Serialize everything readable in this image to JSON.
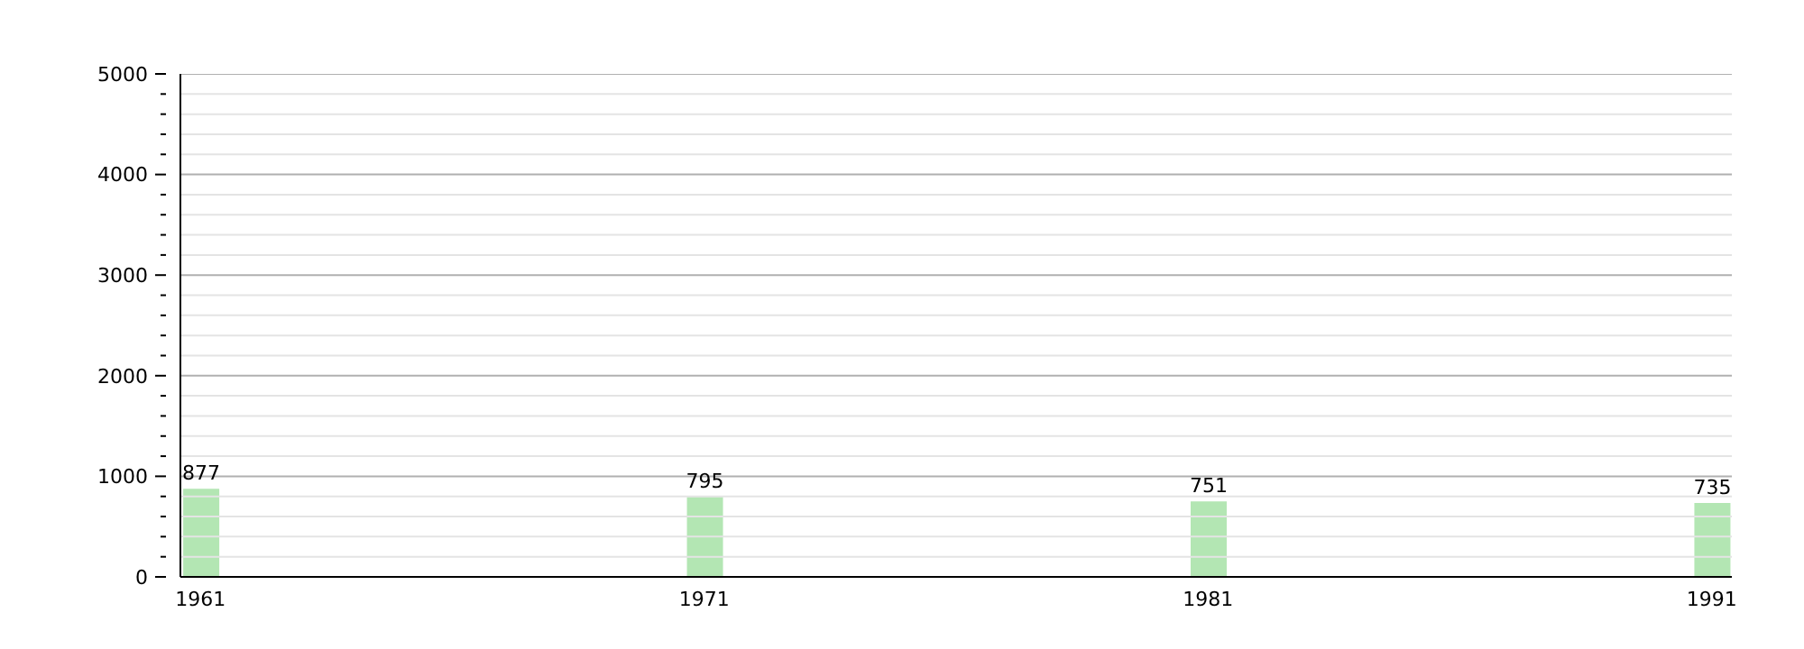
{
  "chart_data": {
    "type": "bar",
    "x": [
      1961,
      1971,
      1981,
      1991
    ],
    "values": [
      877,
      795,
      751,
      735
    ],
    "color": "#b3e6b3",
    "xlim": [
      1960.6,
      1991.4
    ],
    "xticks": [
      1961,
      1971,
      1981,
      1991
    ],
    "ylim": [
      0,
      5000
    ],
    "yticks": [
      0,
      {
        "value": 200,
        "label": null
      },
      {
        "value": 400,
        "label": null
      },
      {
        "value": 600,
        "label": null
      },
      {
        "value": 800,
        "label": null
      },
      1000,
      {
        "value": 1200,
        "label": null
      },
      {
        "value": 1400,
        "label": null
      },
      {
        "value": 1600,
        "label": null
      },
      {
        "value": 1800,
        "label": null
      },
      2000,
      {
        "value": 2200,
        "label": null
      },
      {
        "value": 2400,
        "label": null
      },
      {
        "value": 2600,
        "label": null
      },
      {
        "value": 2800,
        "label": null
      },
      3000,
      {
        "value": 3200,
        "label": null
      },
      {
        "value": 3400,
        "label": null
      },
      {
        "value": 3600,
        "label": null
      },
      {
        "value": 3800,
        "label": null
      },
      4000,
      {
        "value": 4200,
        "label": null
      },
      {
        "value": 4400,
        "label": null
      },
      {
        "value": 4600,
        "label": null
      },
      {
        "value": 4800,
        "label": null
      },
      5000
    ],
    "grid": "y",
    "data_labels": true
  }
}
